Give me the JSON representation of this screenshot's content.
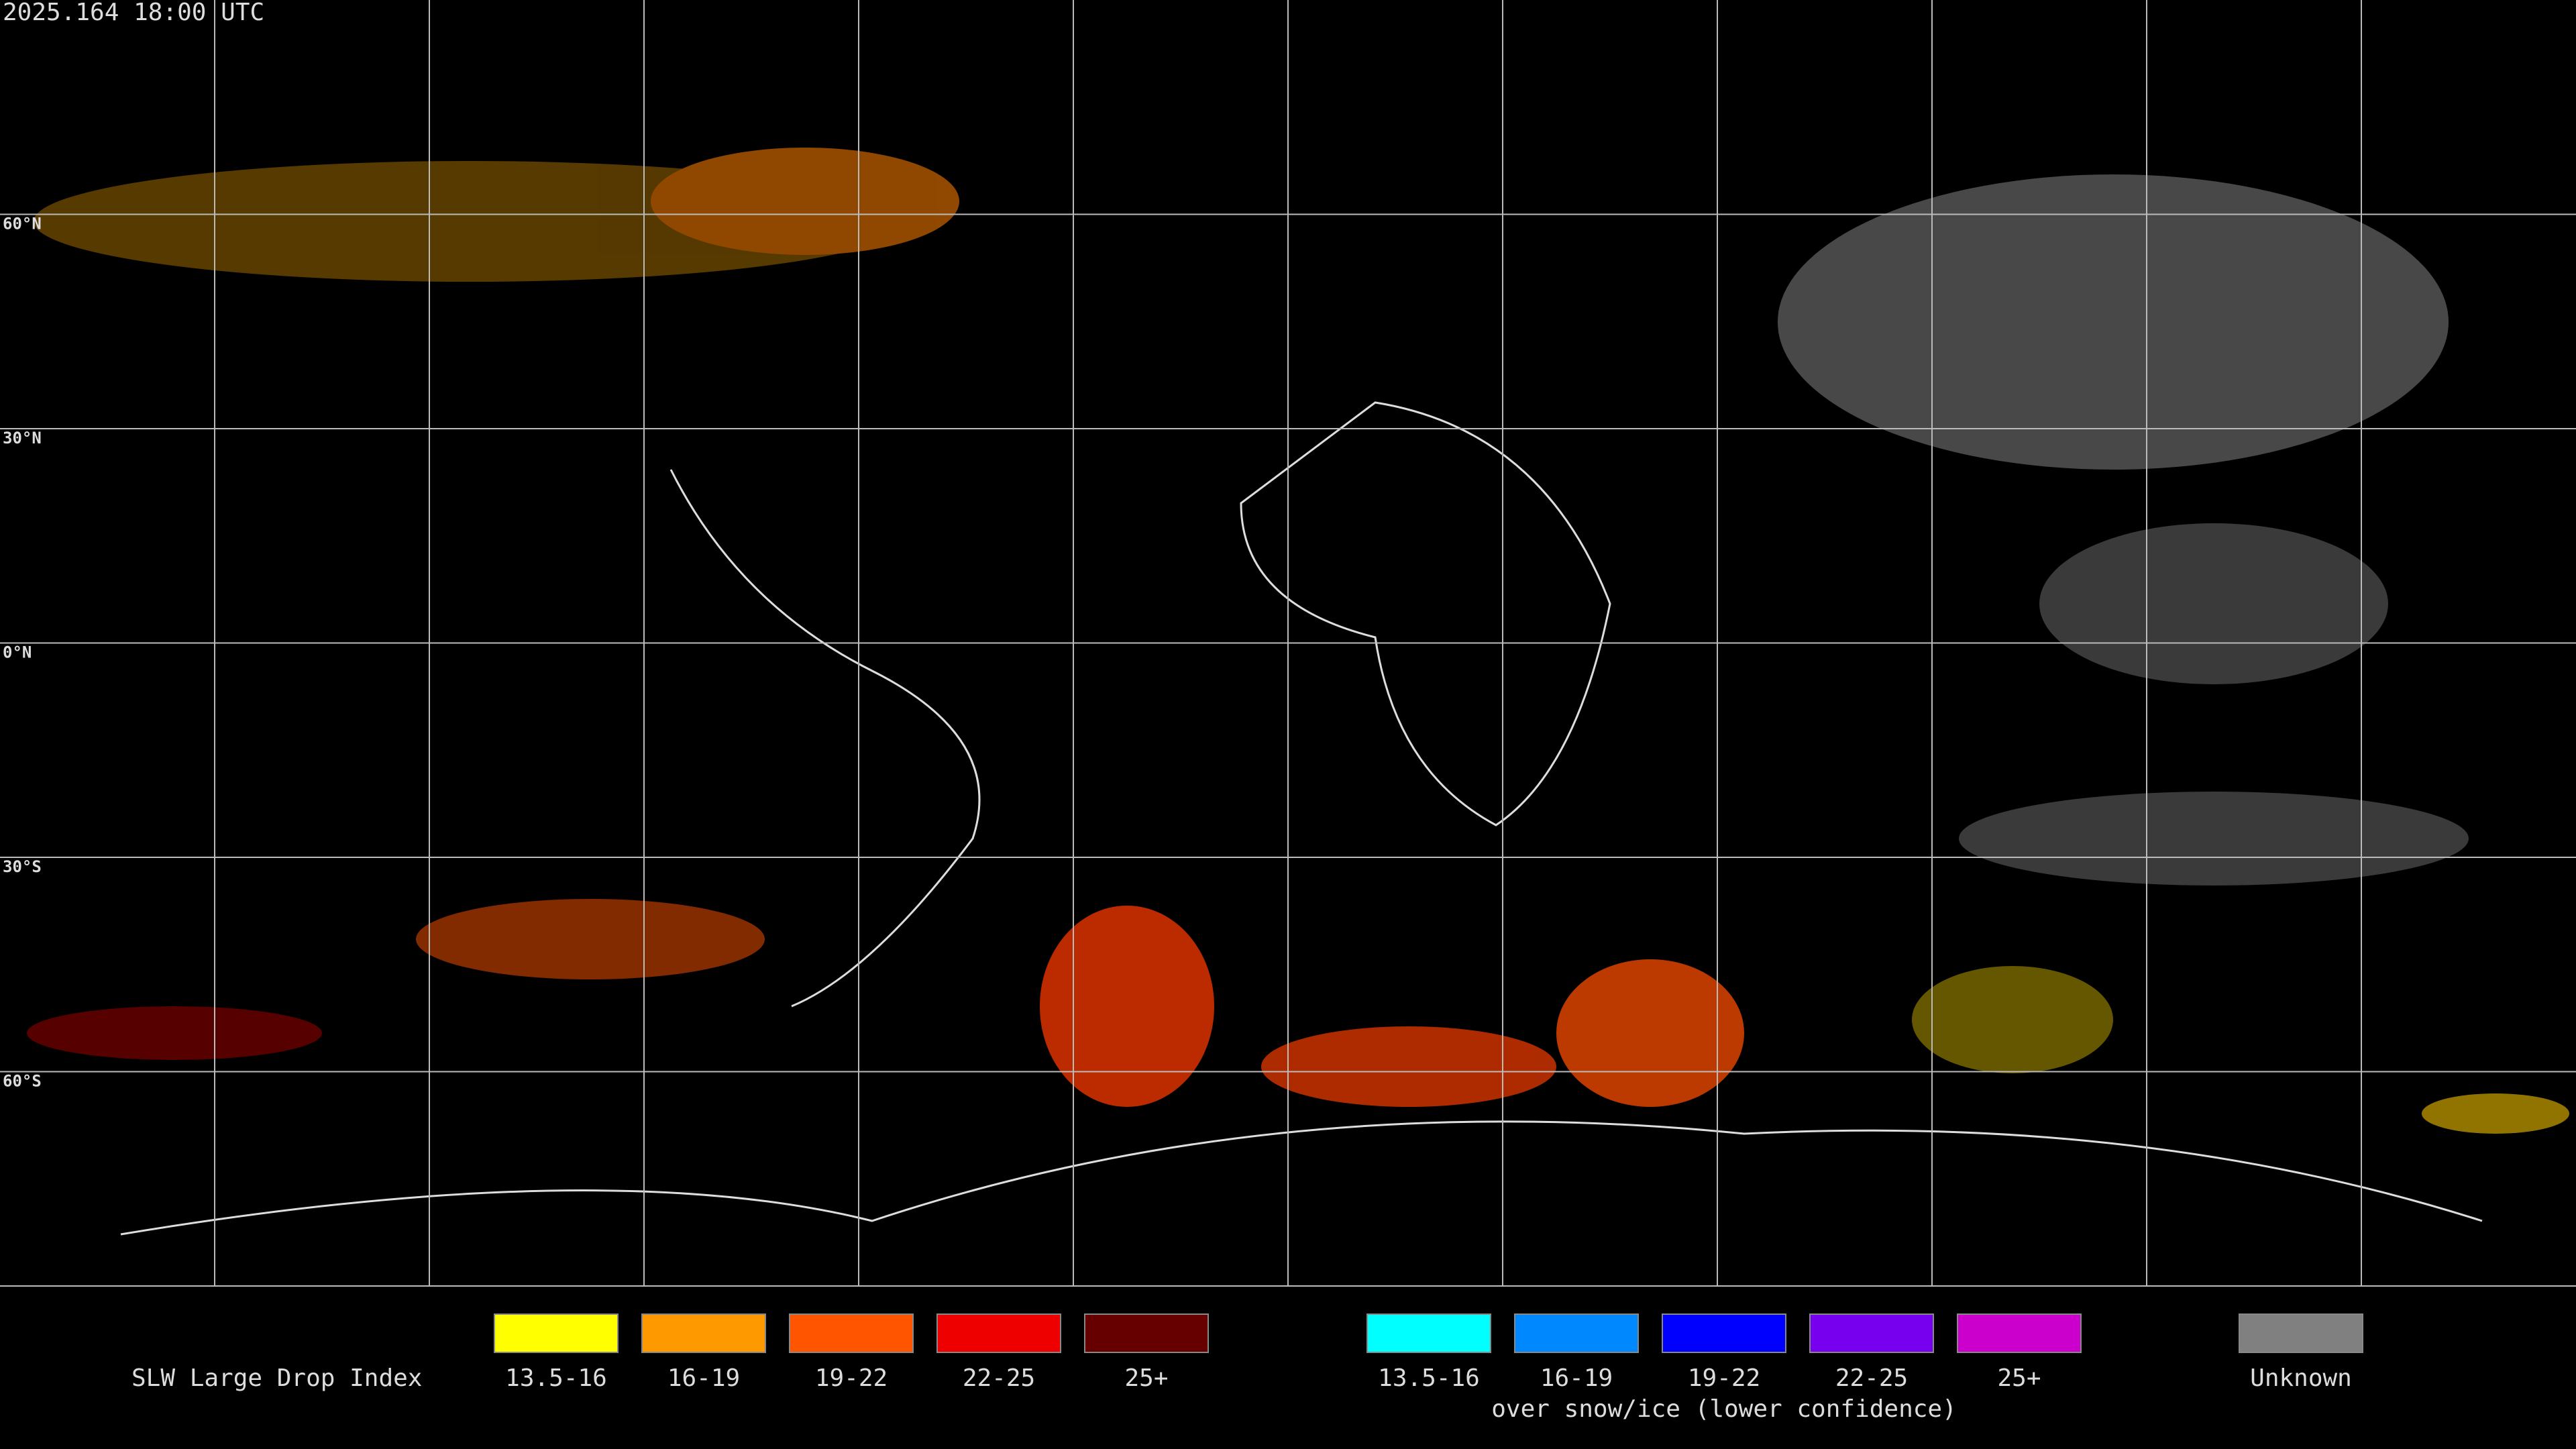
{
  "header": {
    "timestamp": "2025.164 18:00 UTC"
  },
  "map": {
    "lat_labels": [
      "60°N",
      "30°N",
      "0°N",
      "30°S",
      "60°S"
    ]
  },
  "legend": {
    "title": "SLW Large Drop Index",
    "groups": [
      {
        "items": [
          {
            "label": "13.5-16",
            "color": "#ffff00"
          },
          {
            "label": "16-19",
            "color": "#ff9900"
          },
          {
            "label": "19-22",
            "color": "#ff5500"
          },
          {
            "label": "22-25",
            "color": "#ee0000"
          },
          {
            "label": "25+",
            "color": "#660000"
          }
        ]
      },
      {
        "items": [
          {
            "label": "13.5-16",
            "color": "#00ffff"
          },
          {
            "label": "16-19",
            "color": "#0088ff"
          },
          {
            "label": "19-22",
            "color": "#0000ff"
          },
          {
            "label": "22-25",
            "color": "#7700ee"
          },
          {
            "label": "25+",
            "color": "#cc00cc"
          }
        ],
        "caption": "over snow/ice (lower confidence)"
      },
      {
        "items": [
          {
            "label": "Unknown",
            "color": "#808080"
          }
        ]
      }
    ]
  }
}
